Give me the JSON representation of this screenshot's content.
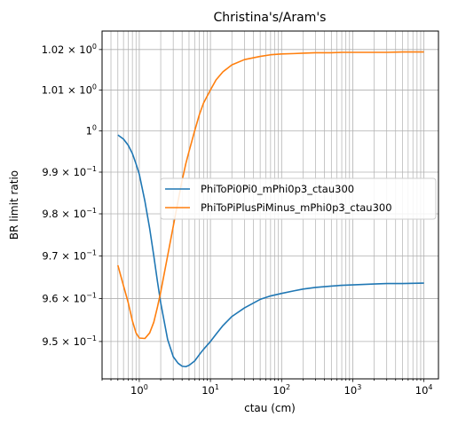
{
  "chart_data": {
    "type": "line",
    "title": "Christina's/Aram's",
    "xlabel": "ctau (cm)",
    "ylabel": "BR limit ratio",
    "xscale": "log",
    "yscale": "log",
    "xlim": [
      0.3,
      16000
    ],
    "ylim": [
      0.9414,
      1.0246
    ],
    "grid": true,
    "legend_position": "center-right",
    "x_ticks": [
      {
        "value": 1,
        "base": "10",
        "exp": "0"
      },
      {
        "value": 10,
        "base": "10",
        "exp": "1"
      },
      {
        "value": 100,
        "base": "10",
        "exp": "2"
      },
      {
        "value": 1000,
        "base": "10",
        "exp": "3"
      },
      {
        "value": 10000,
        "base": "10",
        "exp": "4"
      }
    ],
    "y_ticks": [
      {
        "value": 0.95,
        "mant": "9.5",
        "exp": "−1"
      },
      {
        "value": 0.96,
        "mant": "9.6",
        "exp": "−1"
      },
      {
        "value": 0.97,
        "mant": "9.7",
        "exp": "−1"
      },
      {
        "value": 0.98,
        "mant": "9.8",
        "exp": "−1"
      },
      {
        "value": 0.99,
        "mant": "9.9",
        "exp": "−1"
      },
      {
        "value": 1.0,
        "plain": "1",
        "exp": "0"
      },
      {
        "value": 1.01,
        "mant": "1.01",
        "exp": "0"
      },
      {
        "value": 1.02,
        "mant": "1.02",
        "exp": "0"
      }
    ],
    "series": [
      {
        "name": "PhiToPi0Pi0_mPhi0p3_ctau300",
        "color": "#1f77b4",
        "x": [
          0.5,
          0.6,
          0.7,
          0.8,
          0.9,
          1.0,
          1.2,
          1.4,
          1.6,
          1.8,
          2.0,
          2.5,
          3.0,
          3.5,
          4.0,
          4.5,
          5.0,
          6.0,
          7.0,
          8.0,
          10,
          12,
          15,
          20,
          30,
          50,
          70,
          100,
          150,
          200,
          300,
          500,
          700,
          1000,
          2000,
          3000,
          5000,
          10000
        ],
        "y": [
          0.999,
          0.998,
          0.9965,
          0.9945,
          0.992,
          0.9895,
          0.983,
          0.9765,
          0.97,
          0.964,
          0.959,
          0.9505,
          0.9465,
          0.945,
          0.9443,
          0.9442,
          0.9445,
          0.9455,
          0.947,
          0.9482,
          0.95,
          0.9517,
          0.9537,
          0.9558,
          0.9578,
          0.9598,
          0.9606,
          0.9612,
          0.9618,
          0.9622,
          0.9626,
          0.9629,
          0.9631,
          0.9632,
          0.9634,
          0.9635,
          0.9635,
          0.9636
        ]
      },
      {
        "name": "PhiToPiPlusPiMinus_mPhi0p3_ctau300",
        "color": "#ff7f0e",
        "x": [
          0.5,
          0.6,
          0.7,
          0.8,
          0.9,
          1.0,
          1.2,
          1.4,
          1.6,
          1.8,
          2.0,
          2.5,
          3.0,
          3.5,
          4.0,
          4.5,
          5.0,
          6.0,
          7.0,
          8.0,
          10,
          12,
          15,
          20,
          30,
          50,
          70,
          100,
          150,
          200,
          300,
          500,
          700,
          1000,
          2000,
          3000,
          5000,
          10000
        ],
        "y": [
          0.9678,
          0.963,
          0.959,
          0.9548,
          0.952,
          0.9508,
          0.9507,
          0.952,
          0.9545,
          0.958,
          0.9615,
          0.97,
          0.977,
          0.983,
          0.988,
          0.992,
          0.995,
          1.0,
          1.004,
          1.0068,
          1.01,
          1.0125,
          1.0145,
          1.0162,
          1.0175,
          1.0183,
          1.0187,
          1.0189,
          1.019,
          1.0191,
          1.0192,
          1.0192,
          1.0193,
          1.0193,
          1.0193,
          1.0193,
          1.0194,
          1.0194
        ]
      }
    ]
  }
}
